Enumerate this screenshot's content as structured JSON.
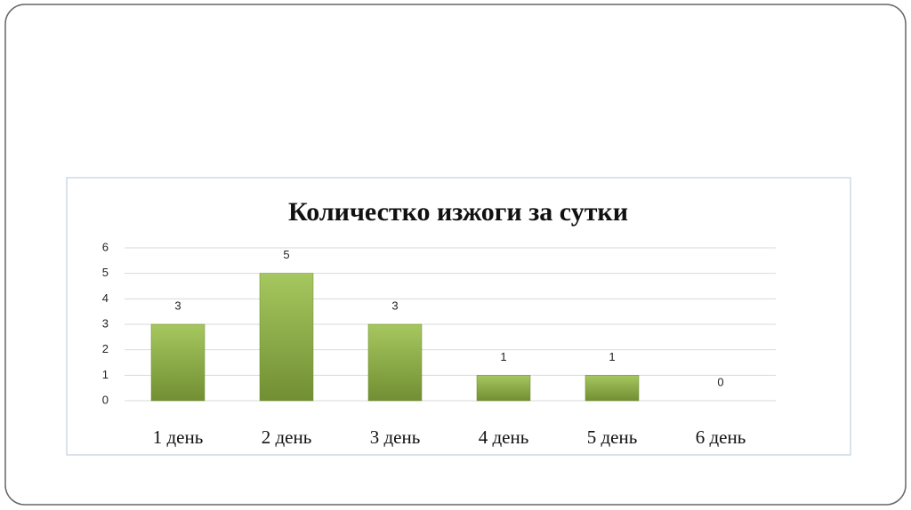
{
  "chart_data": {
    "type": "bar",
    "title": "Количестко изжоги за сутки",
    "categories": [
      "1 день",
      "2 день",
      "3 день",
      "4 день",
      "5 день",
      "6 день"
    ],
    "values": [
      3,
      5,
      3,
      1,
      1,
      0
    ],
    "color": "#8db04a",
    "ylim": [
      0,
      6
    ],
    "yticks": [
      0,
      1,
      2,
      3,
      4,
      5,
      6
    ],
    "grid": true
  }
}
